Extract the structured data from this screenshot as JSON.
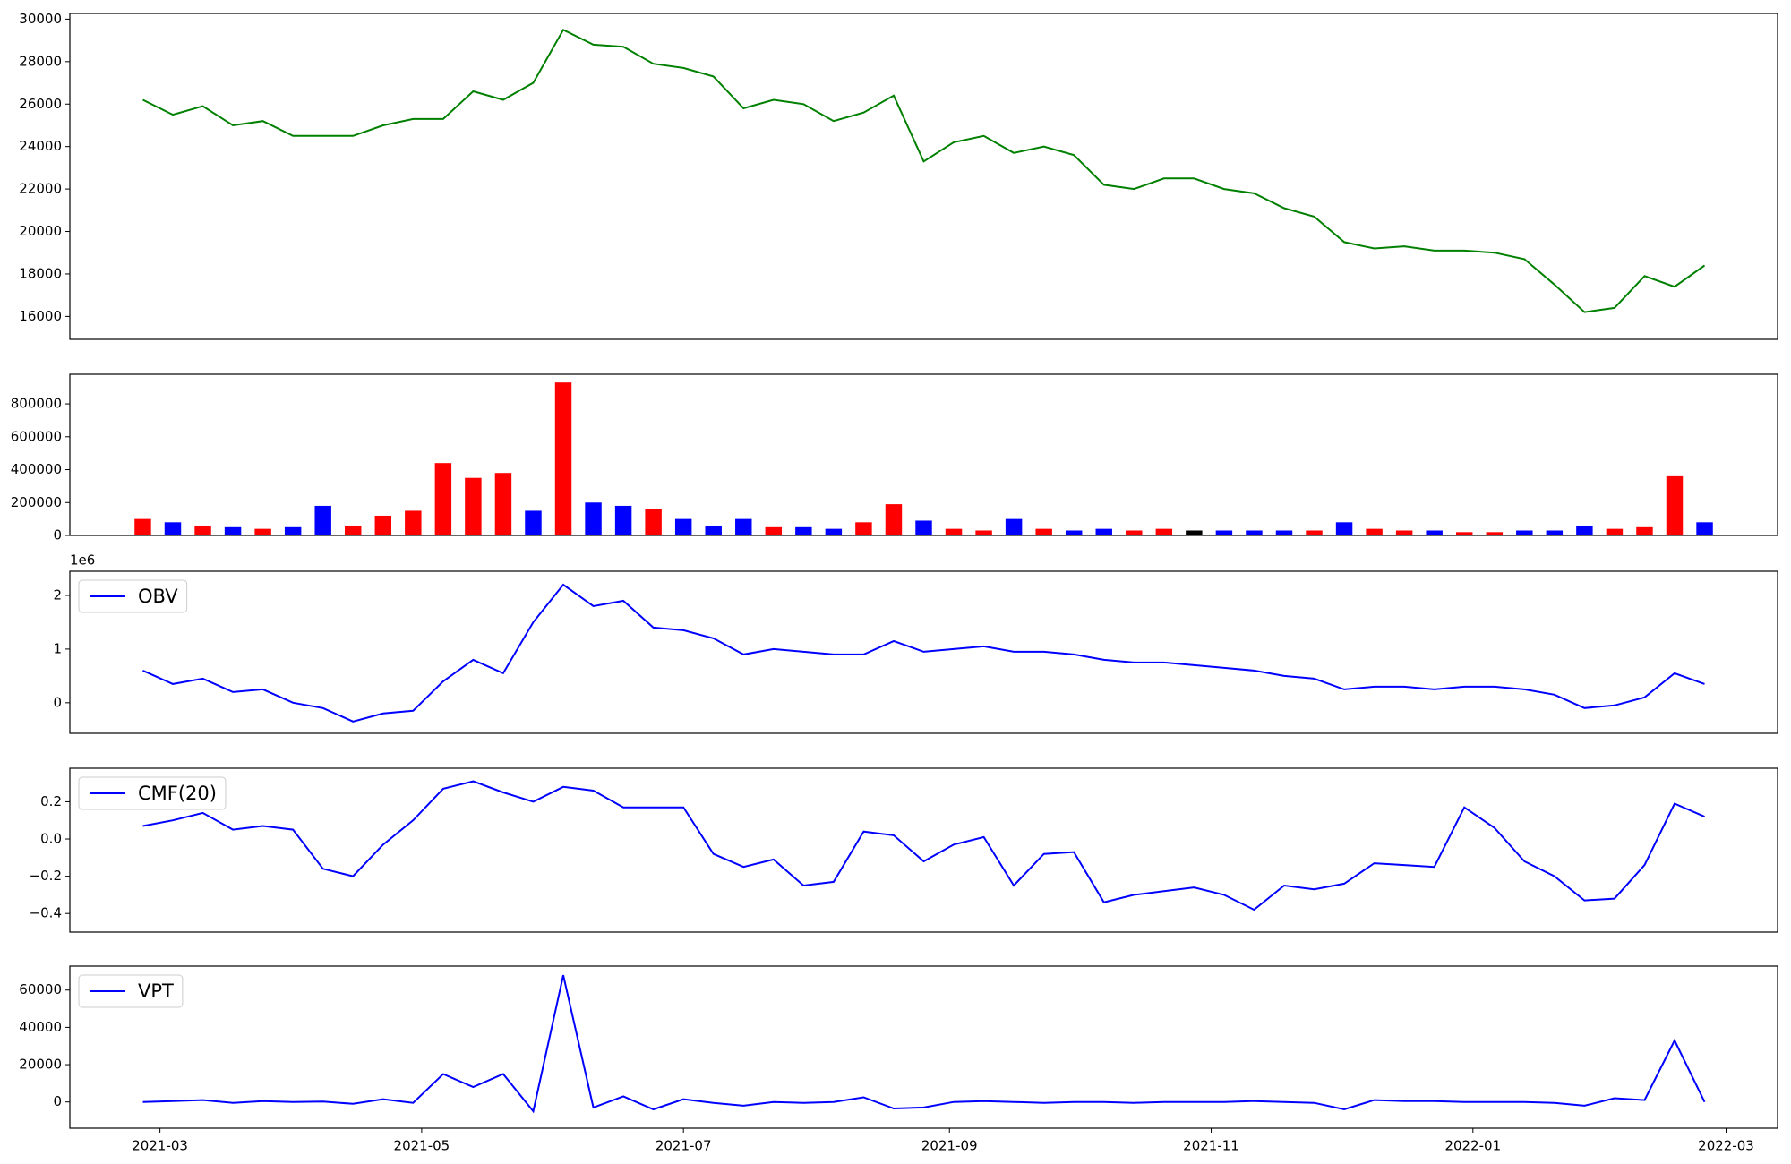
{
  "chart_data": [
    {
      "type": "line",
      "x": [
        "2021-02-25",
        "2021-03-04",
        "2021-03-11",
        "2021-03-18",
        "2021-03-25",
        "2021-04-01",
        "2021-04-08",
        "2021-04-15",
        "2021-04-22",
        "2021-04-29",
        "2021-05-06",
        "2021-05-13",
        "2021-05-20",
        "2021-05-27",
        "2021-06-03",
        "2021-06-10",
        "2021-06-17",
        "2021-06-24",
        "2021-07-01",
        "2021-07-08",
        "2021-07-15",
        "2021-07-22",
        "2021-07-29",
        "2021-08-05",
        "2021-08-12",
        "2021-08-19",
        "2021-08-26",
        "2021-09-02",
        "2021-09-09",
        "2021-09-16",
        "2021-09-23",
        "2021-09-30",
        "2021-10-07",
        "2021-10-14",
        "2021-10-21",
        "2021-10-28",
        "2021-11-04",
        "2021-11-11",
        "2021-11-18",
        "2021-11-25",
        "2021-12-02",
        "2021-12-09",
        "2021-12-16",
        "2021-12-23",
        "2021-12-30",
        "2022-01-06",
        "2022-01-13",
        "2022-01-20",
        "2022-01-27",
        "2022-02-03",
        "2022-02-10",
        "2022-02-17",
        "2022-02-24"
      ],
      "series": [
        {
          "color": "#008000",
          "values": [
            26200,
            25500,
            25900,
            25000,
            25200,
            24500,
            24500,
            24500,
            25000,
            25300,
            25300,
            26600,
            26200,
            27000,
            29500,
            28800,
            28700,
            27900,
            27700,
            27300,
            25800,
            26200,
            26000,
            25200,
            25600,
            26400,
            23300,
            24200,
            24500,
            23700,
            24000,
            23600,
            22200,
            22000,
            22500,
            22500,
            22000,
            21800,
            21100,
            20700,
            19500,
            19200,
            19300,
            19100,
            19100,
            19000,
            18700,
            17500,
            16200,
            16400,
            17900,
            17400,
            18400
          ]
        }
      ],
      "xlim": [
        "2021-02-08",
        "2022-03-13"
      ],
      "ylim": [
        14920,
        30270
      ],
      "yticks": [
        16000,
        18000,
        20000,
        22000,
        24000,
        26000,
        28000,
        30000
      ]
    },
    {
      "type": "bar",
      "x": [
        "2021-02-25",
        "2021-03-04",
        "2021-03-11",
        "2021-03-18",
        "2021-03-25",
        "2021-04-01",
        "2021-04-08",
        "2021-04-15",
        "2021-04-22",
        "2021-04-29",
        "2021-05-06",
        "2021-05-13",
        "2021-05-20",
        "2021-05-27",
        "2021-06-03",
        "2021-06-10",
        "2021-06-17",
        "2021-06-24",
        "2021-07-01",
        "2021-07-08",
        "2021-07-15",
        "2021-07-22",
        "2021-07-29",
        "2021-08-05",
        "2021-08-12",
        "2021-08-19",
        "2021-08-26",
        "2021-09-02",
        "2021-09-09",
        "2021-09-16",
        "2021-09-23",
        "2021-09-30",
        "2021-10-07",
        "2021-10-14",
        "2021-10-21",
        "2021-10-28",
        "2021-11-04",
        "2021-11-11",
        "2021-11-18",
        "2021-11-25",
        "2021-12-02",
        "2021-12-09",
        "2021-12-16",
        "2021-12-23",
        "2021-12-30",
        "2022-01-06",
        "2022-01-13",
        "2022-01-20",
        "2022-01-27",
        "2022-02-03",
        "2022-02-10",
        "2022-02-17",
        "2022-02-24"
      ],
      "values": [
        100000,
        80000,
        60000,
        50000,
        40000,
        50000,
        180000,
        60000,
        120000,
        150000,
        440000,
        350000,
        380000,
        150000,
        930000,
        200000,
        180000,
        160000,
        100000,
        60000,
        100000,
        50000,
        50000,
        40000,
        80000,
        190000,
        90000,
        40000,
        30000,
        100000,
        40000,
        30000,
        40000,
        30000,
        40000,
        30000,
        30000,
        30000,
        30000,
        30000,
        80000,
        40000,
        30000,
        30000,
        20000,
        20000,
        30000,
        30000,
        60000,
        40000,
        50000,
        360000,
        80000
      ],
      "colors": [
        "#ff0000",
        "#0000ff",
        "#ff0000",
        "#0000ff",
        "#ff0000",
        "#0000ff",
        "#0000ff",
        "#ff0000",
        "#ff0000",
        "#ff0000",
        "#ff0000",
        "#ff0000",
        "#ff0000",
        "#0000ff",
        "#ff0000",
        "#0000ff",
        "#0000ff",
        "#ff0000",
        "#0000ff",
        "#0000ff",
        "#0000ff",
        "#ff0000",
        "#0000ff",
        "#0000ff",
        "#ff0000",
        "#ff0000",
        "#0000ff",
        "#ff0000",
        "#ff0000",
        "#0000ff",
        "#ff0000",
        "#0000ff",
        "#0000ff",
        "#ff0000",
        "#ff0000",
        "#000000",
        "#0000ff",
        "#0000ff",
        "#0000ff",
        "#ff0000",
        "#0000ff",
        "#ff0000",
        "#ff0000",
        "#0000ff",
        "#ff0000",
        "#ff0000",
        "#0000ff",
        "#0000ff",
        "#0000ff",
        "#ff0000",
        "#ff0000",
        "#ff0000",
        "#0000ff"
      ],
      "xlim": [
        "2021-02-08",
        "2022-03-13"
      ],
      "ylim": [
        0,
        980000
      ],
      "yticks": [
        0,
        200000,
        400000,
        600000,
        800000
      ]
    },
    {
      "type": "line",
      "offset_label": "1e6",
      "legend": "upper left",
      "x": [
        "2021-02-25",
        "2021-03-04",
        "2021-03-11",
        "2021-03-18",
        "2021-03-25",
        "2021-04-01",
        "2021-04-08",
        "2021-04-15",
        "2021-04-22",
        "2021-04-29",
        "2021-05-06",
        "2021-05-13",
        "2021-05-20",
        "2021-05-27",
        "2021-06-03",
        "2021-06-10",
        "2021-06-17",
        "2021-06-24",
        "2021-07-01",
        "2021-07-08",
        "2021-07-15",
        "2021-07-22",
        "2021-07-29",
        "2021-08-05",
        "2021-08-12",
        "2021-08-19",
        "2021-08-26",
        "2021-09-02",
        "2021-09-09",
        "2021-09-16",
        "2021-09-23",
        "2021-09-30",
        "2021-10-07",
        "2021-10-14",
        "2021-10-21",
        "2021-10-28",
        "2021-11-04",
        "2021-11-11",
        "2021-11-18",
        "2021-11-25",
        "2021-12-02",
        "2021-12-09",
        "2021-12-16",
        "2021-12-23",
        "2021-12-30",
        "2022-01-06",
        "2022-01-13",
        "2022-01-20",
        "2022-01-27",
        "2022-02-03",
        "2022-02-10",
        "2022-02-17",
        "2022-02-24"
      ],
      "series": [
        {
          "name": "OBV",
          "color": "#0000ff",
          "values": [
            0.6,
            0.35,
            0.45,
            0.2,
            0.25,
            0.0,
            -0.1,
            -0.35,
            -0.2,
            -0.15,
            0.4,
            0.8,
            0.55,
            1.5,
            2.2,
            1.8,
            1.9,
            1.4,
            1.35,
            1.2,
            0.9,
            1.0,
            0.95,
            0.9,
            0.9,
            1.15,
            0.95,
            1.0,
            1.05,
            0.95,
            0.95,
            0.9,
            0.8,
            0.75,
            0.75,
            0.7,
            0.65,
            0.6,
            0.5,
            0.45,
            0.25,
            0.3,
            0.3,
            0.25,
            0.3,
            0.3,
            0.25,
            0.15,
            -0.1,
            -0.05,
            0.1,
            0.55,
            0.35
          ]
        }
      ],
      "xlim": [
        "2021-02-08",
        "2022-03-13"
      ],
      "ylim": [
        -0.57,
        2.45
      ],
      "yticks": [
        0,
        1,
        2
      ]
    },
    {
      "type": "line",
      "legend": "upper left",
      "x": [
        "2021-02-25",
        "2021-03-04",
        "2021-03-11",
        "2021-03-18",
        "2021-03-25",
        "2021-04-01",
        "2021-04-08",
        "2021-04-15",
        "2021-04-22",
        "2021-04-29",
        "2021-05-06",
        "2021-05-13",
        "2021-05-20",
        "2021-05-27",
        "2021-06-03",
        "2021-06-10",
        "2021-06-17",
        "2021-06-24",
        "2021-07-01",
        "2021-07-08",
        "2021-07-15",
        "2021-07-22",
        "2021-07-29",
        "2021-08-05",
        "2021-08-12",
        "2021-08-19",
        "2021-08-26",
        "2021-09-02",
        "2021-09-09",
        "2021-09-16",
        "2021-09-23",
        "2021-09-30",
        "2021-10-07",
        "2021-10-14",
        "2021-10-21",
        "2021-10-28",
        "2021-11-04",
        "2021-11-11",
        "2021-11-18",
        "2021-11-25",
        "2021-12-02",
        "2021-12-09",
        "2021-12-16",
        "2021-12-23",
        "2021-12-30",
        "2022-01-06",
        "2022-01-13",
        "2022-01-20",
        "2022-01-27",
        "2022-02-03",
        "2022-02-10",
        "2022-02-17",
        "2022-02-24"
      ],
      "series": [
        {
          "name": "CMF(20)",
          "color": "#0000ff",
          "values": [
            0.07,
            0.1,
            0.14,
            0.05,
            0.07,
            0.05,
            -0.16,
            -0.2,
            -0.03,
            0.1,
            0.27,
            0.31,
            0.25,
            0.2,
            0.28,
            0.26,
            0.17,
            0.17,
            0.17,
            -0.08,
            -0.15,
            -0.11,
            -0.25,
            -0.23,
            0.04,
            0.02,
            -0.12,
            -0.03,
            0.01,
            -0.25,
            -0.08,
            -0.07,
            -0.34,
            -0.3,
            -0.28,
            -0.26,
            -0.3,
            -0.38,
            -0.25,
            -0.27,
            -0.24,
            -0.13,
            -0.14,
            -0.15,
            0.17,
            0.06,
            -0.12,
            -0.2,
            -0.33,
            -0.32,
            -0.14,
            0.19,
            0.12
          ]
        }
      ],
      "xlim": [
        "2021-02-08",
        "2022-03-13"
      ],
      "ylim": [
        -0.5,
        0.38
      ],
      "yticks": [
        {
          "value": -0.4,
          "label": "−0.4"
        },
        {
          "value": -0.2,
          "label": "−0.2"
        },
        {
          "value": 0,
          "label": "0.0"
        },
        {
          "value": 0.2,
          "label": "0.2"
        }
      ]
    },
    {
      "type": "line",
      "legend": "upper left",
      "x": [
        "2021-02-25",
        "2021-03-04",
        "2021-03-11",
        "2021-03-18",
        "2021-03-25",
        "2021-04-01",
        "2021-04-08",
        "2021-04-15",
        "2021-04-22",
        "2021-04-29",
        "2021-05-06",
        "2021-05-13",
        "2021-05-20",
        "2021-05-27",
        "2021-06-03",
        "2021-06-10",
        "2021-06-17",
        "2021-06-24",
        "2021-07-01",
        "2021-07-08",
        "2021-07-15",
        "2021-07-22",
        "2021-07-29",
        "2021-08-05",
        "2021-08-12",
        "2021-08-19",
        "2021-08-26",
        "2021-09-02",
        "2021-09-09",
        "2021-09-16",
        "2021-09-23",
        "2021-09-30",
        "2021-10-07",
        "2021-10-14",
        "2021-10-21",
        "2021-10-28",
        "2021-11-04",
        "2021-11-11",
        "2021-11-18",
        "2021-11-25",
        "2021-12-02",
        "2021-12-09",
        "2021-12-16",
        "2021-12-23",
        "2021-12-30",
        "2022-01-06",
        "2022-01-13",
        "2022-01-20",
        "2022-01-27",
        "2022-02-03",
        "2022-02-10",
        "2022-02-17",
        "2022-02-24"
      ],
      "series": [
        {
          "name": "VPT",
          "color": "#0000ff",
          "values": [
            0,
            500,
            1000,
            -500,
            500,
            0,
            200,
            -1000,
            1500,
            -500,
            15000,
            8000,
            15000,
            -5000,
            68000,
            -3000,
            3000,
            -4000,
            1500,
            -500,
            -2000,
            0,
            -500,
            0,
            2500,
            -3500,
            -3000,
            0,
            500,
            0,
            -500,
            0,
            0,
            -500,
            0,
            0,
            0,
            500,
            0,
            -500,
            -4000,
            1000,
            500,
            500,
            0,
            0,
            0,
            -500,
            -2000,
            2000,
            1000,
            33000,
            0
          ]
        }
      ],
      "xlim": [
        "2021-02-08",
        "2022-03-13"
      ],
      "ylim": [
        -14070,
        72840
      ],
      "yticks": [
        0,
        20000,
        40000,
        60000
      ],
      "xticks": [
        "2021-03",
        "2021-05",
        "2021-07",
        "2021-09",
        "2021-11",
        "2022-01",
        "2022-03"
      ]
    }
  ]
}
